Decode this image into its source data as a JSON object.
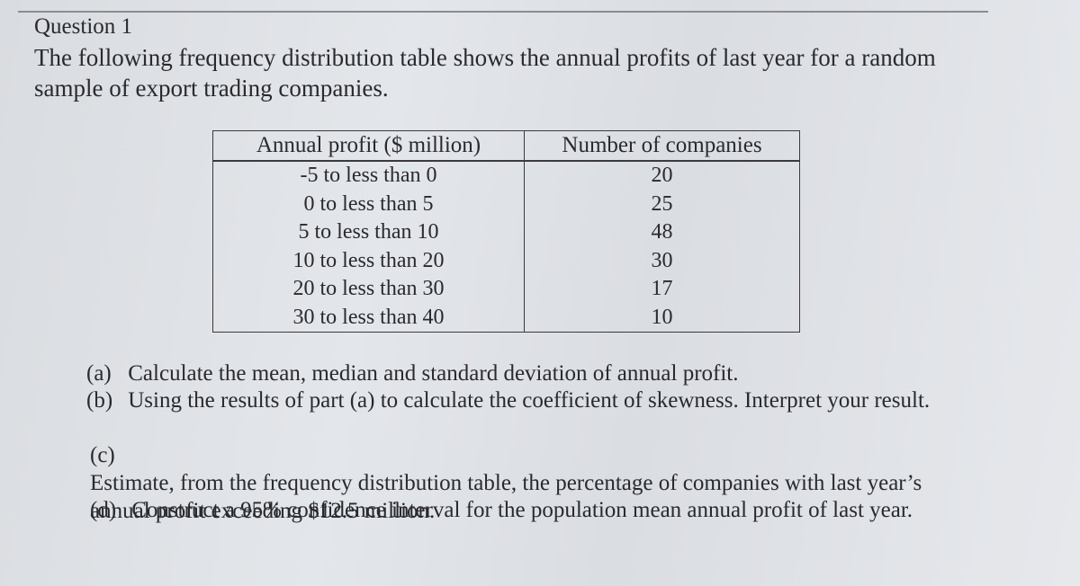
{
  "question": {
    "title": "Question 1",
    "intro": "The following frequency distribution table shows the annual profits of last year for a random sample of export trading companies."
  },
  "table": {
    "headers": [
      "Annual profit ($ million)",
      "Number of companies"
    ],
    "rows": [
      {
        "profit": "-5 to less than 0",
        "count": "20"
      },
      {
        "profit": "0 to less than 5",
        "count": "25"
      },
      {
        "profit": "5 to less than 10",
        "count": "48"
      },
      {
        "profit": "10 to less than 20",
        "count": "30"
      },
      {
        "profit": "20 to less than 30",
        "count": "17"
      },
      {
        "profit": "30 to less than 40",
        "count": "10"
      }
    ]
  },
  "parts": [
    {
      "label": "(a)",
      "text": "Calculate the mean, median and standard deviation of annual profit."
    },
    {
      "label": "(b)",
      "text": "Using the results of part (a) to calculate the coefficient of skewness.  Interpret your result."
    },
    {
      "label": "(c)",
      "text": "Estimate, from the frequency distribution table, the percentage of companies with last year’s annual profit exceeding $12.5 million."
    },
    {
      "label": "(d)",
      "text": "Construct a 95% confidence interval for the population mean annual profit of last year."
    }
  ]
}
